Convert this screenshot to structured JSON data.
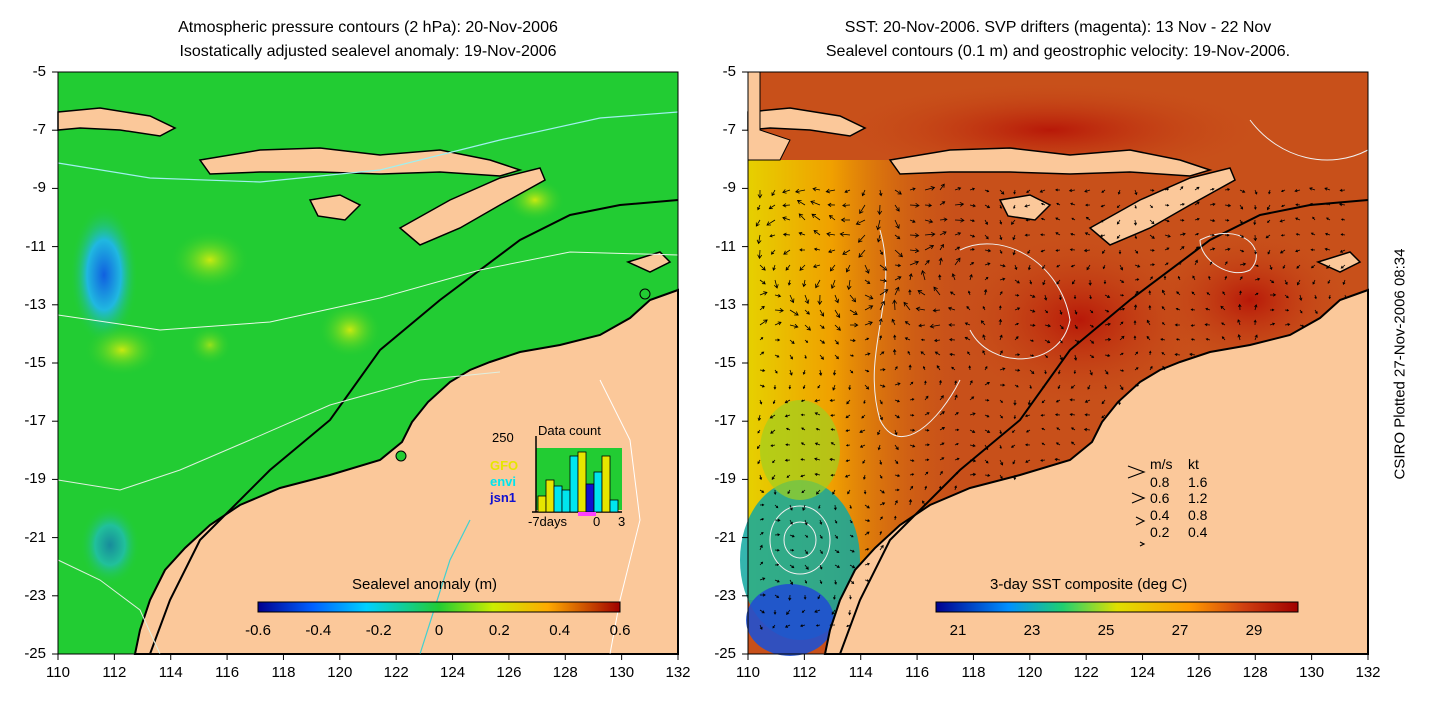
{
  "left_panel": {
    "title_line1": "Atmospheric pressure contours (2 hPa): 20-Nov-2006",
    "title_line2": "Isostatically adjusted sealevel anomaly: 19-Nov-2006",
    "colorbar_label": "Sealevel anomaly (m)",
    "colorbar_ticks": [
      "-0.6",
      "-0.4",
      "-0.2",
      "0",
      "0.2",
      "0.4",
      "0.6"
    ],
    "inset": {
      "count_label": "250",
      "title": "Data count",
      "legend": [
        {
          "name": "GFO",
          "color": "#e6e600"
        },
        {
          "name": "envi",
          "color": "#00e5ee"
        },
        {
          "name": "jsn1",
          "color": "#1010d0"
        }
      ],
      "x_label_left": "-7days",
      "x_label_mid": "0",
      "x_label_right": "3"
    }
  },
  "right_panel": {
    "title_line1": "SST: 20-Nov-2006. SVP drifters (magenta): 13 Nov - 22 Nov",
    "title_line2": "Sealevel contours (0.1 m) and geostrophic velocity: 19-Nov-2006.",
    "colorbar_label": "3-day SST composite (deg C)",
    "colorbar_ticks": [
      "21",
      "23",
      "25",
      "27",
      "29"
    ],
    "velocity_legend": {
      "header_ms": "m/s",
      "header_kt": "kt",
      "rows": [
        {
          "ms": "0.8",
          "kt": "1.6"
        },
        {
          "ms": "0.6",
          "kt": "1.2"
        },
        {
          "ms": "0.4",
          "kt": "0.8"
        },
        {
          "ms": "0.2",
          "kt": "0.4"
        }
      ]
    }
  },
  "y_ticks": [
    "-5",
    "-7",
    "-9",
    "-11",
    "-13",
    "-15",
    "-17",
    "-19",
    "-21",
    "-23",
    "-25"
  ],
  "x_ticks": [
    "110",
    "112",
    "114",
    "116",
    "118",
    "120",
    "122",
    "124",
    "126",
    "128",
    "130",
    "132"
  ],
  "credit": "CSIRO Plotted 27-Nov-2006 08:34",
  "colors": {
    "land": "#fbc89a",
    "ocean_left": "#22cc33",
    "ocean_right": "#c8501a"
  }
}
